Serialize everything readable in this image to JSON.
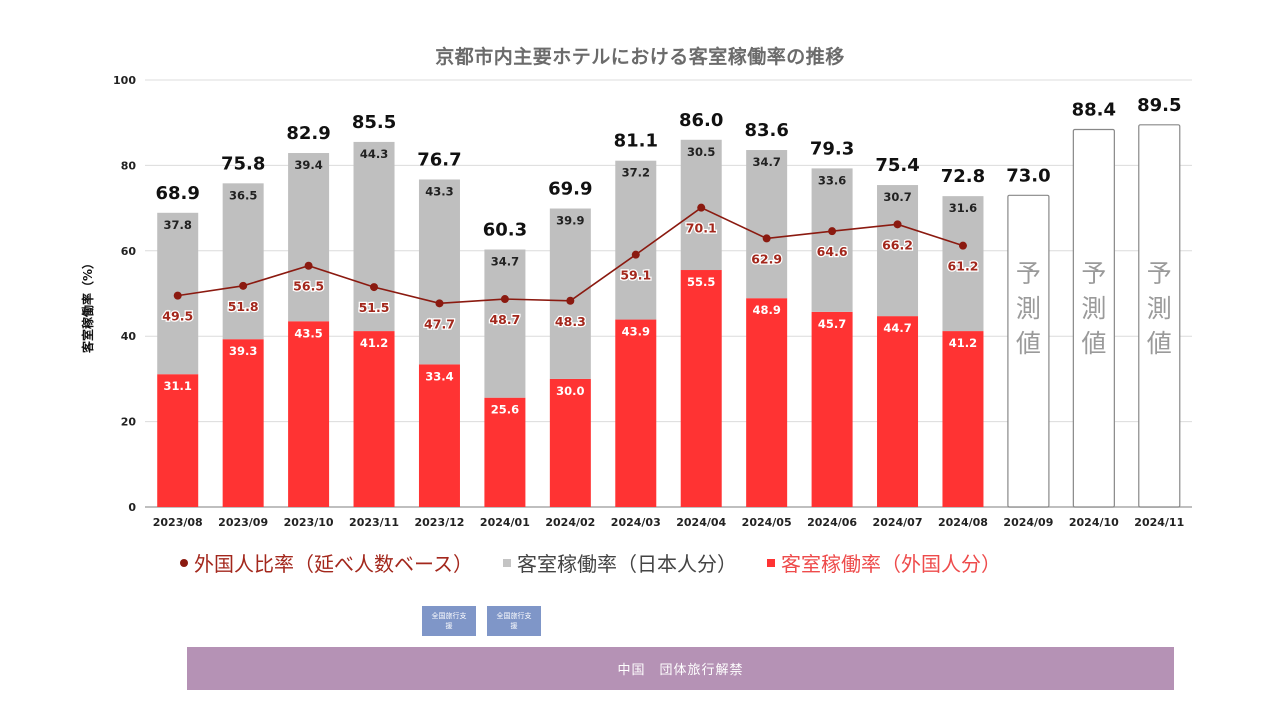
{
  "chart_data": {
    "type": "bar",
    "stacked": true,
    "title": "京都市内主要ホテルにおける客室稼働率の推移",
    "xlabel": "",
    "ylabel": "客室稼働率（%）",
    "ylim": [
      0,
      100
    ],
    "yticks": [
      0,
      20,
      40,
      60,
      80,
      100
    ],
    "grid": true,
    "legend_position": "bottom",
    "categories": [
      "2023/08",
      "2023/09",
      "2023/10",
      "2023/11",
      "2023/12",
      "2024/01",
      "2024/02",
      "2024/03",
      "2024/04",
      "2024/05",
      "2024/06",
      "2024/07",
      "2024/08",
      "2024/09",
      "2024/10",
      "2024/11"
    ],
    "series": [
      {
        "name": "客室稼働率（外国人分）",
        "type": "bar",
        "color": "#ff3333",
        "values": [
          31.1,
          39.3,
          43.5,
          41.2,
          33.4,
          25.6,
          30.0,
          43.9,
          55.5,
          48.9,
          45.7,
          44.7,
          41.2,
          null,
          null,
          null
        ]
      },
      {
        "name": "客室稼働率（日本人分）",
        "type": "bar",
        "color": "#bfbfbf",
        "values": [
          37.8,
          36.5,
          39.4,
          44.3,
          43.3,
          34.7,
          39.9,
          37.2,
          30.5,
          34.7,
          33.6,
          30.7,
          31.6,
          null,
          null,
          null
        ]
      },
      {
        "name": "外国人比率（延べ人数ベース）",
        "type": "line",
        "color": "#8b1a10",
        "values": [
          49.5,
          51.8,
          56.5,
          51.5,
          47.7,
          48.7,
          48.3,
          59.1,
          70.1,
          62.9,
          64.6,
          66.2,
          61.2,
          null,
          null,
          null
        ]
      }
    ],
    "totals": [
      68.9,
      75.8,
      82.9,
      85.5,
      76.7,
      60.3,
      69.9,
      81.1,
      86.0,
      83.6,
      79.3,
      75.4,
      72.8,
      73.0,
      88.4,
      89.5
    ],
    "forecast": {
      "label": "予測値",
      "categories": [
        "2024/09",
        "2024/10",
        "2024/11"
      ],
      "values": [
        73.0,
        88.4,
        89.5
      ]
    }
  },
  "legend": {
    "line_label": "外国人比率（延べ人数ベース）",
    "japanese_label": "客室稼働率（日本人分）",
    "foreign_label": "客室稼働率（外国人分）"
  },
  "annotations": {
    "badges": [
      "全国旅行支援",
      "全国旅行支援"
    ],
    "banner": "中国　団体旅行解禁"
  },
  "colors": {
    "foreign_bar": "#ff3333",
    "japanese_bar": "#bfbfbf",
    "ratio_line": "#8b1a10",
    "badge": "#7f96c8",
    "banner": "#b592b5"
  }
}
